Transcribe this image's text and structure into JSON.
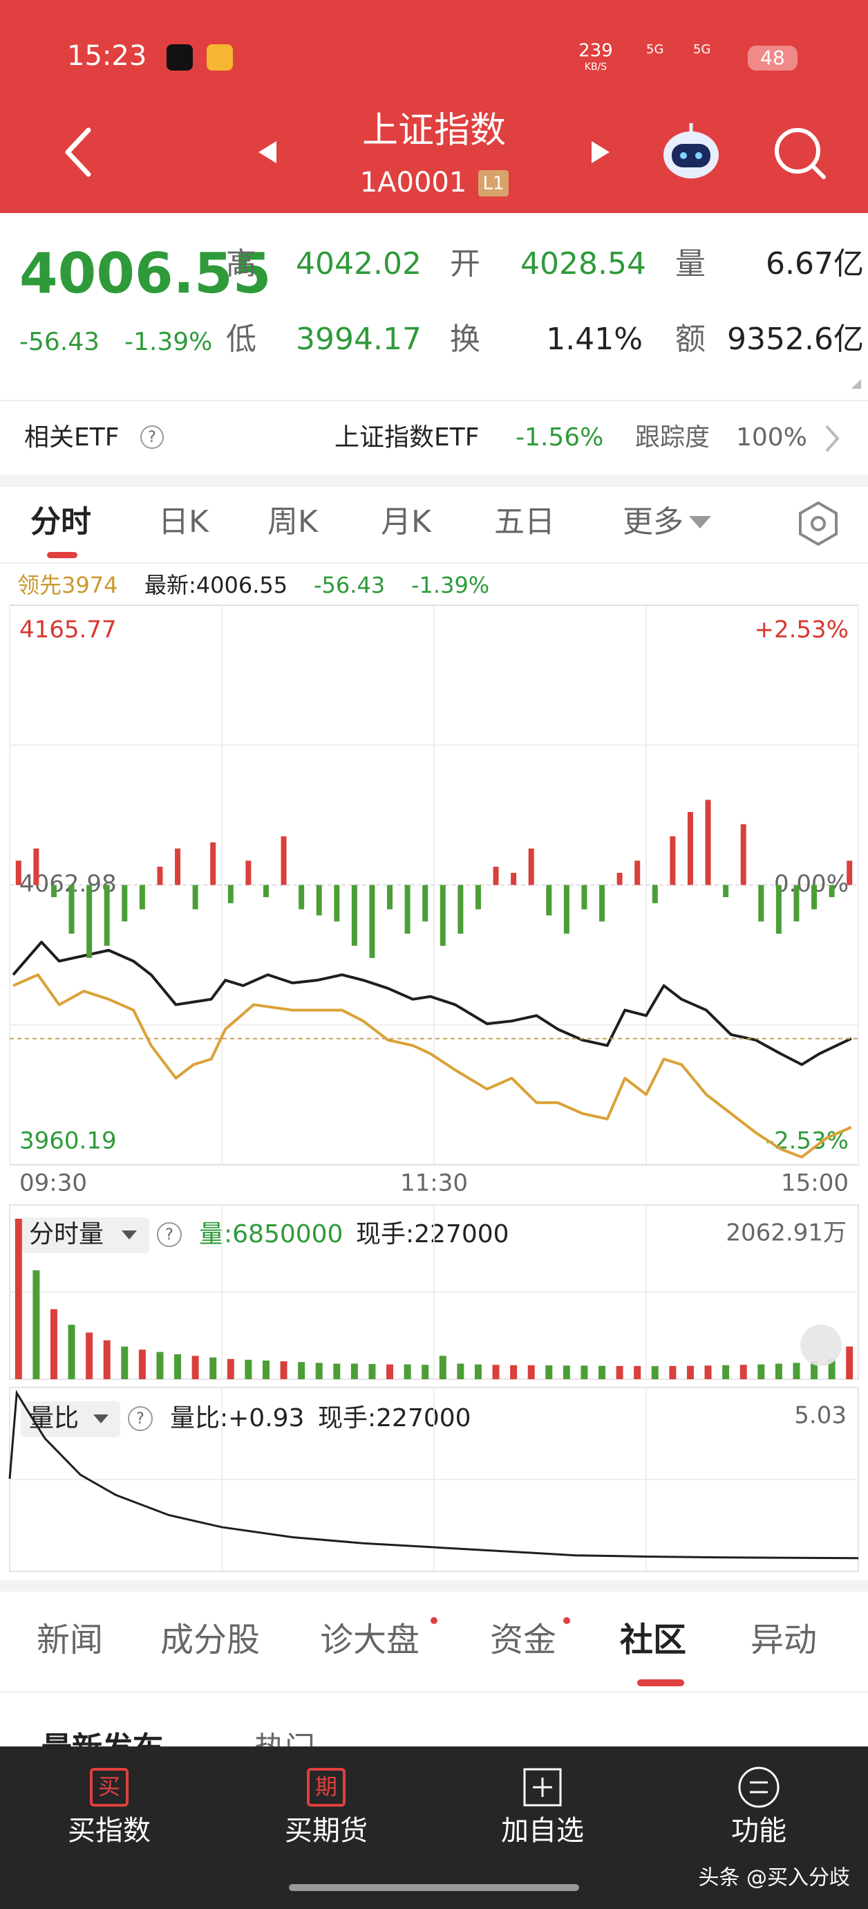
{
  "status_bar": {
    "time": "15:23",
    "net_speed": "239",
    "net_unit": "KB/S",
    "signal_1": "5G",
    "signal_2": "5G",
    "battery": "48"
  },
  "header": {
    "title": "上证指数",
    "code": "1A0001",
    "level": "L1"
  },
  "quote": {
    "price": "4006.55",
    "change": "-56.43",
    "change_pct": "-1.39%",
    "high_label": "高",
    "high": "4042.02",
    "open_label": "开",
    "open": "4028.54",
    "volume_label": "量",
    "volume": "6.67亿",
    "low_label": "低",
    "low": "3994.17",
    "turnover_label": "换",
    "turnover": "1.41%",
    "amount_label": "额",
    "amount": "9352.6亿"
  },
  "etf": {
    "label": "相关ETF",
    "help": "?",
    "name": "上证指数ETF",
    "change": "-1.56%",
    "tracking_label": "跟踪度",
    "tracking": "100%"
  },
  "tabs": [
    "分时",
    "日K",
    "周K",
    "月K",
    "五日",
    "更多"
  ],
  "info_line": {
    "lead": "领先3974",
    "latest": "最新:4006.55",
    "change": "-56.43",
    "change_pct": "-1.39%"
  },
  "chart_data": [
    {
      "type": "line",
      "xlim": [
        0,
        240
      ],
      "xticks": [
        {
          "value": 0,
          "label": "09:30"
        },
        {
          "value": 120,
          "label": "11:30"
        },
        {
          "value": 240,
          "label": "15:00"
        }
      ],
      "ylim": [
        3960.19,
        4165.77
      ],
      "yticks": [
        4165.77,
        4062.98,
        3960.19
      ],
      "y2lim": [
        -2.53,
        2.53
      ],
      "y2ticks": [
        {
          "value": 2.53,
          "label": "+2.53%"
        },
        {
          "value": 0,
          "label": "0.00%"
        },
        {
          "value": -2.53,
          "label": "-2.53%"
        }
      ],
      "y3lim": [
        -230,
        230
      ],
      "grid": true,
      "series": [
        {
          "color": "#1e1e1e",
          "x": [
            1,
            9,
            14,
            21,
            28,
            35,
            40,
            47,
            52,
            57,
            61,
            66,
            73,
            80,
            87,
            94,
            100,
            107,
            114,
            119,
            126,
            135,
            142,
            149,
            155,
            162,
            169,
            174,
            180,
            185,
            190,
            197,
            204,
            211,
            218,
            224,
            229,
            238
          ],
          "values": [
            4030,
            4042,
            4035,
            4037,
            4039,
            4035,
            4030,
            4019,
            4020,
            4021,
            4028,
            4026,
            4030,
            4027,
            4028,
            4030,
            4028,
            4025,
            4021,
            4022,
            4019,
            4012,
            4013,
            4015,
            4010,
            4006,
            4004,
            4017,
            4015,
            4026,
            4021,
            4017,
            4008,
            4006,
            4001,
            3997,
            4001,
            4006.55
          ]
        },
        {
          "color": "#d9a136",
          "x": [
            1,
            8,
            14,
            21,
            28,
            35,
            40,
            47,
            52,
            57,
            61,
            69,
            80,
            87,
            94,
            100,
            107,
            114,
            119,
            126,
            135,
            142,
            149,
            155,
            162,
            169,
            174,
            180,
            185,
            190,
            197,
            204,
            211,
            218,
            224,
            231,
            238
          ],
          "values": [
            4026,
            4030,
            4019,
            4024,
            4021,
            4017,
            4004,
            3992,
            3997,
            3999,
            4010,
            4019,
            4017,
            4017,
            4017,
            4013,
            4006,
            4004,
            4001,
            3995,
            3988,
            3992,
            3983,
            3983,
            3979,
            3977,
            3992,
            3986,
            3999,
            3997,
            3986,
            3979,
            3972,
            3966,
            3963,
            3970,
            3974
          ]
        },
        {
          "type": "bar",
          "axis": "y3",
          "up_color": "#d9403c",
          "down_color": "#4b9e36",
          "x": [
            2.5,
            7.5,
            12.5,
            17.5,
            22.5,
            27.5,
            32.5,
            37.5,
            42.5,
            47.5,
            52.5,
            57.5,
            62.5,
            67.5,
            72.5,
            77.5,
            82.5,
            87.5,
            92.5,
            97.5,
            102.5,
            107.5,
            112.5,
            117.5,
            122.5,
            127.5,
            132.5,
            137.5,
            142.5,
            147.5,
            152.5,
            157.5,
            162.5,
            167.5,
            172.5,
            177.5,
            182.5,
            187.5,
            192.5,
            197.5,
            202.5,
            207.5,
            212.5,
            217.5,
            222.5,
            227.5,
            232.5,
            237.5
          ],
          "values": [
            20,
            30,
            -10,
            -40,
            -60,
            -50,
            -30,
            -20,
            15,
            30,
            -20,
            35,
            -15,
            20,
            -10,
            40,
            -20,
            -25,
            -30,
            -50,
            -60,
            -20,
            -40,
            -30,
            -50,
            -40,
            -20,
            15,
            10,
            30,
            -25,
            -40,
            -20,
            -30,
            10,
            20,
            -15,
            40,
            60,
            70,
            -10,
            50,
            -30,
            -40,
            -30,
            -20,
            -10,
            20
          ]
        }
      ]
    },
    {
      "type": "bar",
      "title": "分时量",
      "help": "?",
      "volume_text": "量:6850000",
      "hand_text": "现手:227000",
      "xlim": [
        0,
        240
      ],
      "ylim": [
        0,
        2062.91
      ],
      "yticks": [
        {
          "value": 2062.91,
          "label": "2062.91万"
        }
      ],
      "x": [
        2.5,
        7.5,
        12.5,
        17.5,
        22.5,
        27.5,
        32.5,
        37.5,
        42.5,
        47.5,
        52.5,
        57.5,
        62.5,
        67.5,
        72.5,
        77.5,
        82.5,
        87.5,
        92.5,
        97.5,
        102.5,
        107.5,
        112.5,
        117.5,
        122.5,
        127.5,
        132.5,
        137.5,
        142.5,
        147.5,
        152.5,
        157.5,
        162.5,
        167.5,
        172.5,
        177.5,
        182.5,
        187.5,
        192.5,
        197.5,
        202.5,
        207.5,
        212.5,
        217.5,
        222.5,
        227.5,
        232.5,
        237.5
      ],
      "values": [
        2062.91,
        1400,
        900,
        700,
        600,
        500,
        420,
        380,
        350,
        320,
        300,
        280,
        260,
        250,
        240,
        230,
        220,
        210,
        200,
        200,
        195,
        190,
        190,
        185,
        300,
        200,
        190,
        185,
        180,
        180,
        178,
        175,
        175,
        172,
        170,
        170,
        168,
        170,
        172,
        175,
        180,
        185,
        190,
        200,
        210,
        230,
        260,
        420
      ],
      "colors": [
        "#d9403c",
        "#4b9e36",
        "#d9403c",
        "#4b9e36",
        "#d9403c",
        "#d9403c",
        "#4b9e36",
        "#d9403c",
        "#4b9e36",
        "#4b9e36",
        "#d9403c",
        "#4b9e36",
        "#d9403c",
        "#4b9e36",
        "#4b9e36",
        "#d9403c",
        "#4b9e36",
        "#4b9e36",
        "#4b9e36",
        "#4b9e36",
        "#4b9e36",
        "#d9403c",
        "#4b9e36",
        "#4b9e36",
        "#4b9e36",
        "#4b9e36",
        "#4b9e36",
        "#d9403c",
        "#d9403c",
        "#d9403c",
        "#4b9e36",
        "#4b9e36",
        "#4b9e36",
        "#4b9e36",
        "#d9403c",
        "#d9403c",
        "#4b9e36",
        "#d9403c",
        "#d9403c",
        "#d9403c",
        "#4b9e36",
        "#d9403c",
        "#4b9e36",
        "#4b9e36",
        "#4b9e36",
        "#4b9e36",
        "#4b9e36",
        "#d9403c"
      ]
    },
    {
      "type": "line",
      "title": "量比",
      "help": "?",
      "ratio_text": "量比:+0.93",
      "hand_text": "现手:227000",
      "xlim": [
        0,
        240
      ],
      "ylim": [
        0.6,
        5.03
      ],
      "yticks": [
        5.03
      ],
      "color": "#1e1e1e",
      "x": [
        0,
        2,
        5,
        10,
        20,
        30,
        45,
        60,
        80,
        100,
        120,
        140,
        160,
        180,
        200,
        220,
        240
      ],
      "values": [
        2.9,
        5.03,
        4.6,
        3.9,
        3.0,
        2.5,
        2.0,
        1.7,
        1.45,
        1.3,
        1.2,
        1.1,
        1.0,
        0.97,
        0.95,
        0.94,
        0.93
      ]
    }
  ],
  "news_tabs": [
    "新闻",
    "成分股",
    "诊大盘",
    "资金",
    "社区",
    "异动"
  ],
  "feed": {
    "latest": "最新发布",
    "hot": "热门"
  },
  "nav": [
    {
      "icon": "买",
      "label": "买指数"
    },
    {
      "icon": "期",
      "label": "买期货"
    },
    {
      "label": "加自选"
    },
    {
      "label": "功能"
    }
  ],
  "watermark": "头条 @买入分歧"
}
